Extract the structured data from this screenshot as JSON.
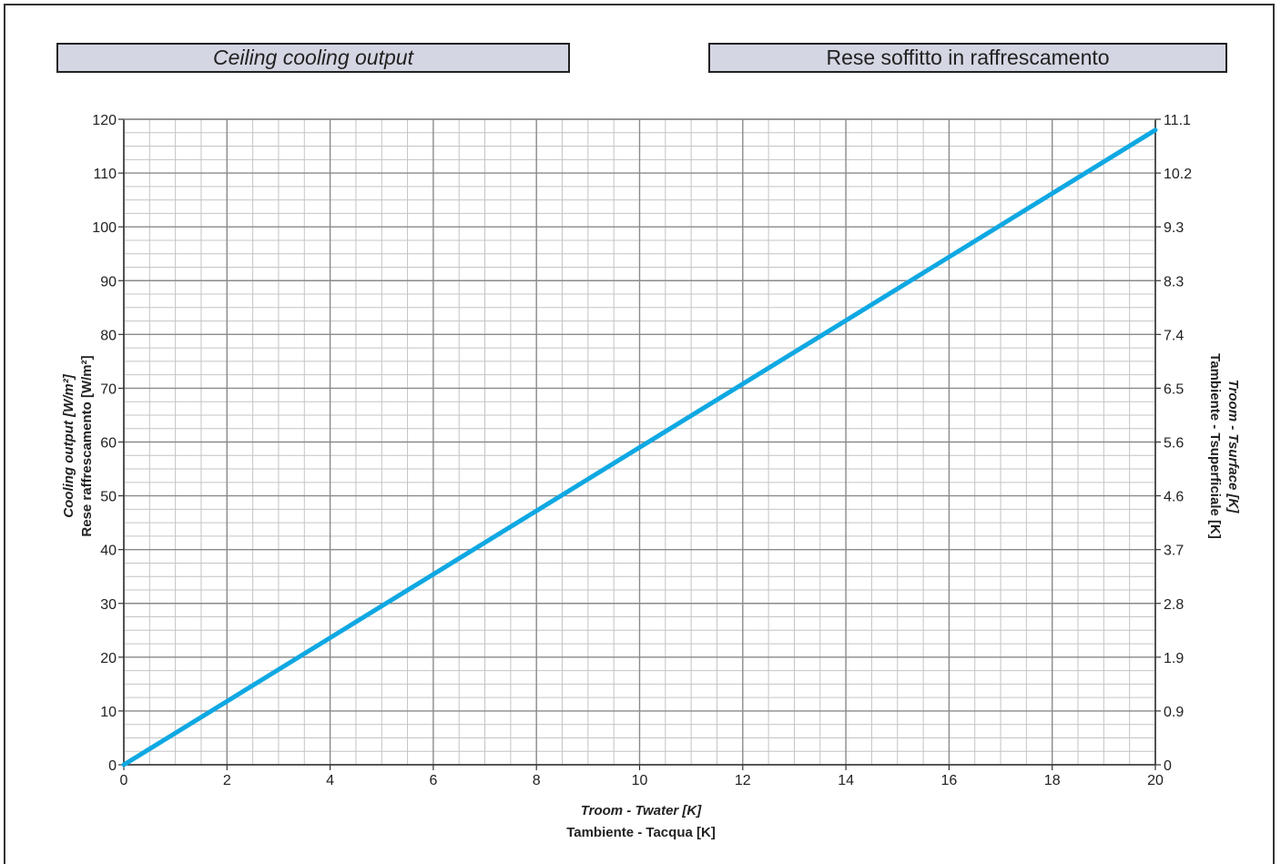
{
  "titles": {
    "english": "Ceiling cooling output",
    "italian": "Rese soffitto in raffrescamento"
  },
  "chart_data": {
    "type": "line",
    "xlabel_en": "Troom - Twater [K]",
    "xlabel_it": "Tambiente - Tacqua [K]",
    "ylabel_en": "Cooling output [W/m²]",
    "ylabel_it": "Rese raffrescamento [W/m²]",
    "y2label_en": "Troom - Tsurface [K]",
    "y2label_it": "Tambiente - Tsuperficiale [K]",
    "xlim": [
      0,
      20
    ],
    "ylim": [
      0,
      120
    ],
    "x_ticks": [
      0,
      2,
      4,
      6,
      8,
      10,
      12,
      14,
      16,
      18,
      20
    ],
    "y_ticks": [
      0,
      10,
      20,
      30,
      40,
      50,
      60,
      70,
      80,
      90,
      100,
      110,
      120
    ],
    "y2_ticks": [
      "0",
      "0.9",
      "1.9",
      "2.8",
      "3.7",
      "4.6",
      "5.6",
      "6.5",
      "7.4",
      "8.3",
      "9.3",
      "10.2",
      "11.1"
    ],
    "grid": true,
    "series": [
      {
        "color": "#0fa8e2",
        "x": [
          0,
          20
        ],
        "y": [
          0,
          118
        ]
      }
    ]
  }
}
